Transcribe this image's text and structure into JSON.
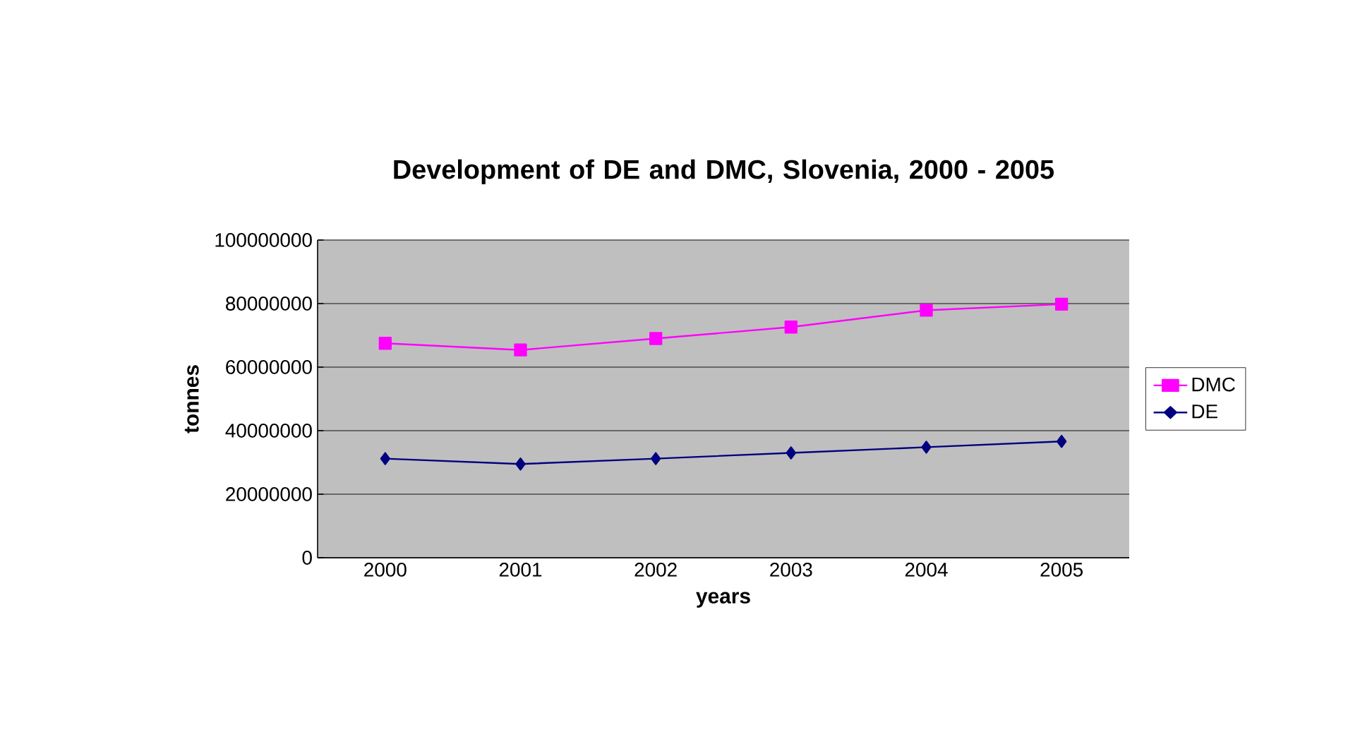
{
  "chart_data": {
    "type": "line",
    "title": "Development of DE and DMC, Slovenia, 2000 - 2005",
    "xlabel": "years",
    "ylabel": "tonnes",
    "categories": [
      "2000",
      "2001",
      "2002",
      "2003",
      "2004",
      "2005"
    ],
    "series": [
      {
        "name": "DMC",
        "color": "#ff00ff",
        "marker": "square",
        "values": [
          67500000,
          65400000,
          69000000,
          72600000,
          77900000,
          79800000
        ]
      },
      {
        "name": "DE",
        "color": "#000080",
        "marker": "diamond",
        "values": [
          31200000,
          29500000,
          31200000,
          33000000,
          34800000,
          36600000
        ]
      }
    ],
    "ylim": [
      0,
      100000000
    ],
    "yticks": [
      0,
      20000000,
      40000000,
      60000000,
      80000000,
      100000000
    ],
    "grid": "y",
    "legend": "right",
    "line_style": "solid"
  }
}
